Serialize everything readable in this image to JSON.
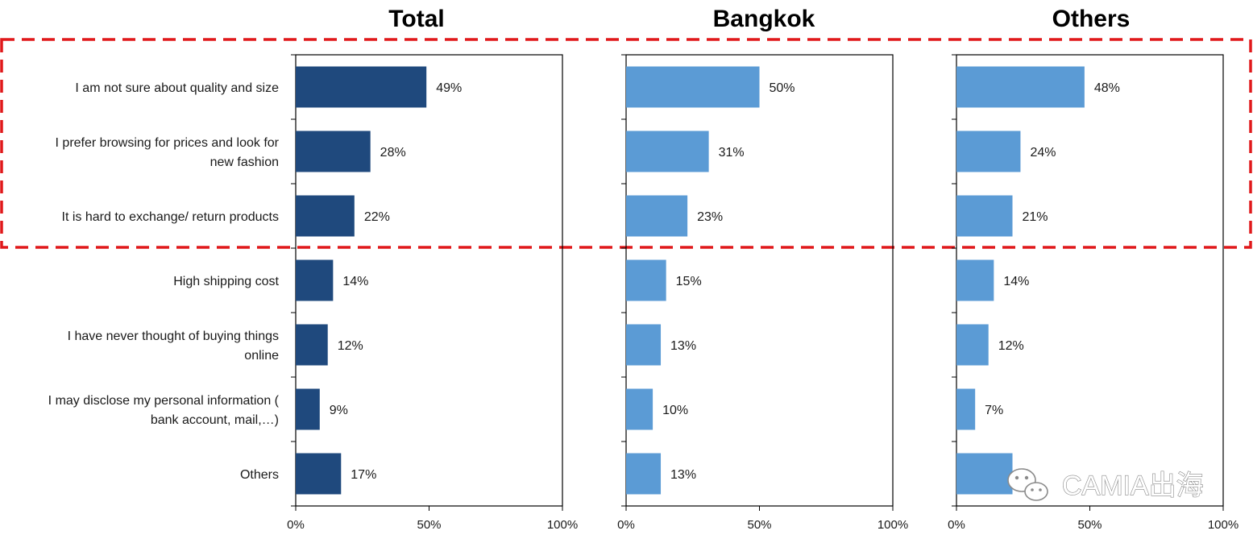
{
  "colors": {
    "total_bar": "#1F497D",
    "city_bar": "#5B9BD5",
    "highlight": "#E0191B",
    "axis": "#000000"
  },
  "highlight_box": {
    "style": "red dashed rectangle",
    "encloses_categories": [
      "I am not sure about quality and size",
      "I prefer browsing for prices and look for new fashion",
      "It is hard to exchange/ return products"
    ]
  },
  "watermark": {
    "icon": "wechat-icon",
    "text": "CAMIA出海"
  },
  "chart_data": [
    {
      "type": "bar",
      "orientation": "horizontal",
      "title": "Total",
      "categories": [
        "I am not sure about quality and size",
        "I prefer browsing for prices and look for new fashion",
        "It is hard to exchange/ return products",
        "High shipping cost",
        "I have never thought of buying things online",
        "I may disclose my personal information ( bank account, mail,…)",
        "Others"
      ],
      "category_lines": [
        [
          "I am not sure about quality and size"
        ],
        [
          "I prefer browsing for prices and look for",
          "new fashion"
        ],
        [
          "It is hard to exchange/ return products"
        ],
        [
          "High shipping cost"
        ],
        [
          "I have never thought of buying things",
          "online"
        ],
        [
          "I may disclose my personal information (",
          "bank account, mail,…)"
        ],
        [
          "Others"
        ]
      ],
      "values": [
        49,
        28,
        22,
        14,
        12,
        9,
        17
      ],
      "value_labels": [
        "49%",
        "28%",
        "22%",
        "14%",
        "12%",
        "9%",
        "17%"
      ],
      "xlim": [
        0,
        100
      ],
      "xticks": [
        "0%",
        "50%",
        "100%"
      ],
      "grid": false
    },
    {
      "type": "bar",
      "orientation": "horizontal",
      "title": "Bangkok",
      "values": [
        50,
        31,
        23,
        15,
        13,
        10,
        13
      ],
      "value_labels": [
        "50%",
        "31%",
        "23%",
        "15%",
        "13%",
        "10%",
        "13%"
      ],
      "xlim": [
        0,
        100
      ],
      "xticks": [
        "0%",
        "50%",
        "100%"
      ],
      "grid": false
    },
    {
      "type": "bar",
      "orientation": "horizontal",
      "title": "Others",
      "values": [
        48,
        24,
        21,
        14,
        12,
        7,
        21
      ],
      "value_labels": [
        "48%",
        "24%",
        "21%",
        "14%",
        "12%",
        "7%",
        ""
      ],
      "xlim": [
        0,
        100
      ],
      "xticks": [
        "0%",
        "50%",
        "100%"
      ],
      "grid": false
    }
  ]
}
